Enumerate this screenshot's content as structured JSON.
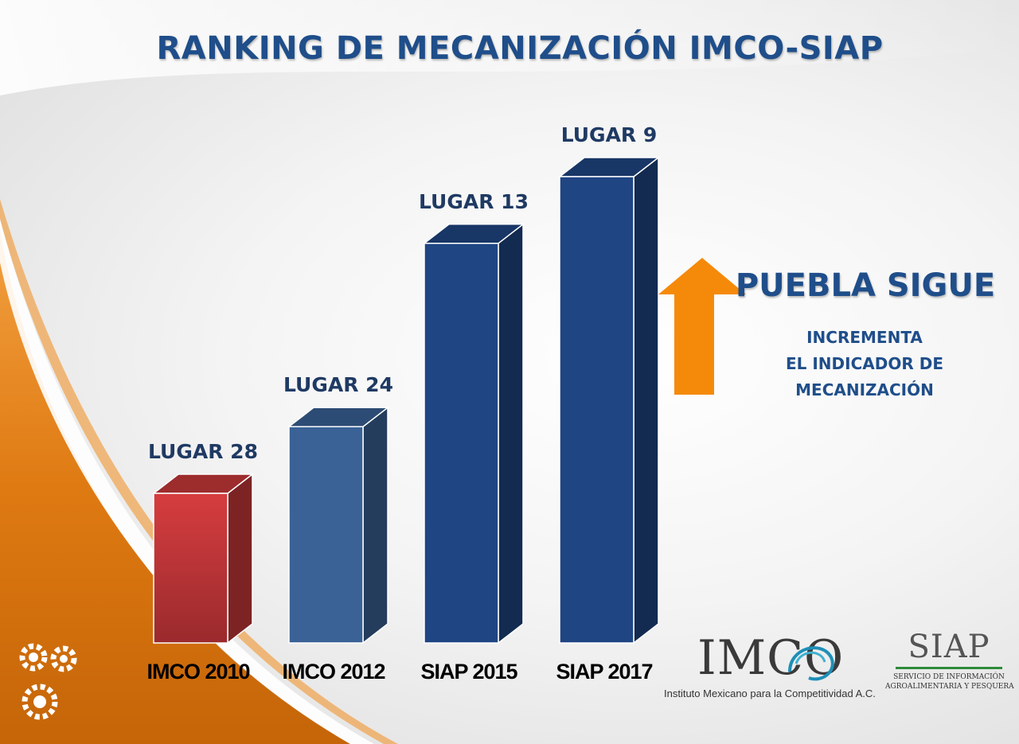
{
  "slide": {
    "title": "RANKING DE MECANIZACIÓN IMCO-SIAP",
    "headline": "PUEBLA SIGUE",
    "subtitle_lines": [
      "INCREMENTA",
      "EL INDICADOR DE",
      "MECANIZACIÓN"
    ],
    "colors": {
      "title": "#1f4e8a",
      "arrow": "#f58a0a",
      "accent_orange": "#e8780c"
    },
    "icons": [
      "gears-icon",
      "up-arrow-icon"
    ]
  },
  "chart_data": {
    "type": "bar",
    "title": "RANKING DE MECANIZACIÓN IMCO-SIAP",
    "categories": [
      "IMCO 2010",
      "IMCO 2012",
      "SIAP 2015",
      "SIAP 2017"
    ],
    "values": [
      28,
      24,
      13,
      9
    ],
    "data_labels": [
      "LUGAR 28",
      "LUGAR 24",
      "LUGAR 13",
      "LUGAR 9"
    ],
    "xlabel": "",
    "ylabel": "",
    "grid": false,
    "bar_style": "3d",
    "bar_colors": [
      "#c9383a",
      "#3a6296",
      "#1f4583",
      "#1f4583"
    ]
  },
  "logos": {
    "imco": {
      "word": "IMCO",
      "name": "Instituto Mexicano para la Competitividad A.C."
    },
    "siap": {
      "word": "SIAP",
      "line1": "SERVICIO DE INFORMACIÓN",
      "line2": "AGROALIMENTARIA Y PESQUERA"
    }
  }
}
